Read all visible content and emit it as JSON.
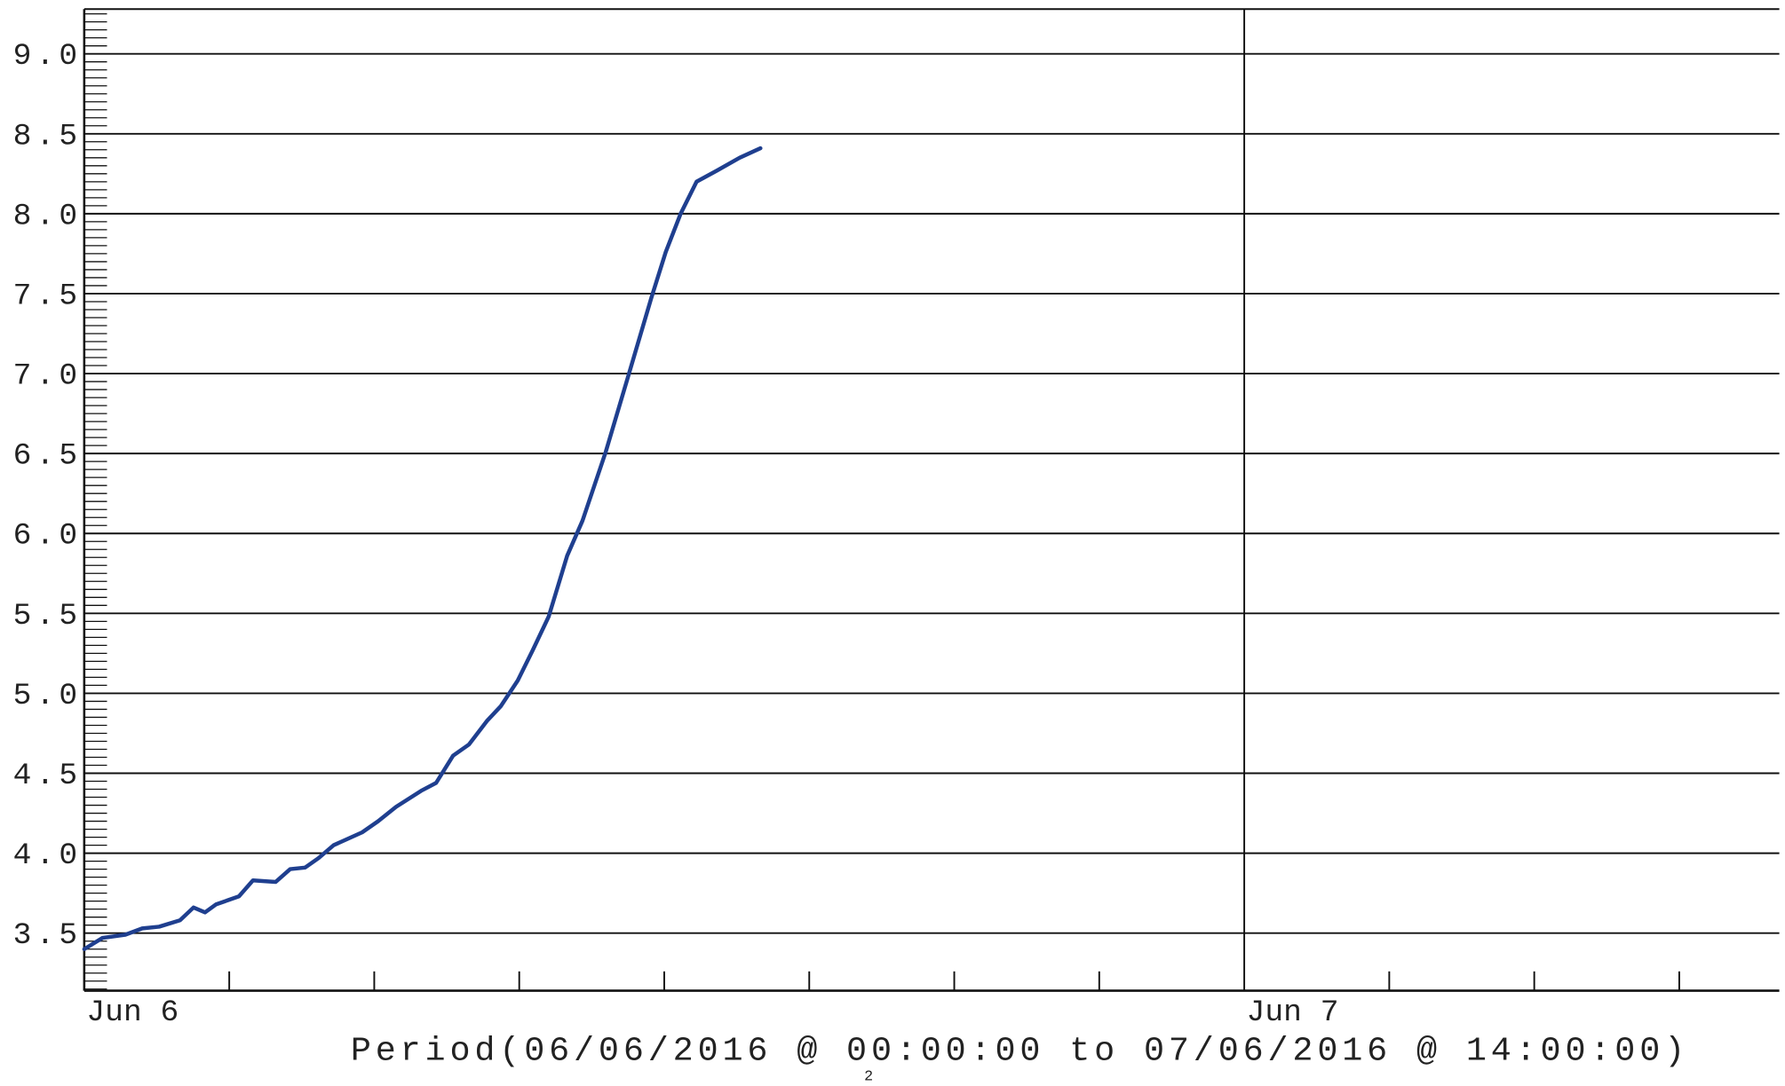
{
  "chart_data": {
    "type": "line",
    "footer": "Period(06/06/2016 @ 00:00:00 to 07/06/2016 @ 14:00:00)",
    "page_number": "2",
    "x": [
      0,
      0.38,
      0.85,
      1.2,
      1.55,
      1.98,
      2.26,
      2.5,
      2.73,
      3.2,
      3.49,
      3.96,
      4.26,
      4.57,
      4.85,
      5.16,
      5.75,
      6.08,
      6.45,
      6.97,
      7.28,
      7.63,
      7.96,
      8.34,
      8.62,
      8.97,
      9.28,
      9.61,
      9.99,
      10.31,
      10.79,
      11.26,
      11.73,
      12.03,
      12.34,
      12.67,
      13.09,
      13.56,
      13.99
    ],
    "series": [
      {
        "color": "#1f3f8f",
        "values": [
          3.4,
          3.47,
          3.49,
          3.53,
          3.54,
          3.58,
          3.66,
          3.63,
          3.68,
          3.73,
          3.83,
          3.82,
          3.9,
          3.91,
          3.97,
          4.05,
          4.13,
          4.2,
          4.29,
          4.39,
          4.44,
          4.61,
          4.68,
          4.83,
          4.92,
          5.08,
          5.27,
          5.48,
          5.86,
          6.08,
          6.51,
          6.99,
          7.47,
          7.76,
          8.0,
          8.2,
          8.27,
          8.35,
          8.41
        ]
      }
    ],
    "xlim": [
      0,
      35.07
    ],
    "xticks": [
      {
        "value": 0,
        "label": "Jun 6"
      },
      {
        "value": 24,
        "label": "Jun 7"
      }
    ],
    "xminorticks": [
      3,
      6,
      9,
      12,
      15,
      18,
      21,
      27,
      30,
      33
    ],
    "ylim": [
      3.14,
      9.28
    ],
    "yticks": [
      {
        "value": 3.5,
        "label": "3.5"
      },
      {
        "value": 4,
        "label": "4.0"
      },
      {
        "value": 4.5,
        "label": "4.5"
      },
      {
        "value": 5,
        "label": "5.0"
      },
      {
        "value": 5.5,
        "label": "5.5"
      },
      {
        "value": 6,
        "label": "6.0"
      },
      {
        "value": 6.5,
        "label": "6.5"
      },
      {
        "value": 7,
        "label": "7.0"
      },
      {
        "value": 7.5,
        "label": "7.5"
      },
      {
        "value": 8,
        "label": "8.0"
      },
      {
        "value": 8.5,
        "label": "8.5"
      },
      {
        "value": 9,
        "label": "9.0"
      }
    ],
    "yminorticks": [
      3.15,
      3.2,
      3.25,
      3.3,
      3.35,
      3.4,
      3.45,
      3.55,
      3.6,
      3.65,
      3.7,
      3.75,
      3.8,
      3.85,
      3.9,
      3.95,
      4.05,
      4.1,
      4.15,
      4.2,
      4.25,
      4.3,
      4.35,
      4.4,
      4.45,
      4.55,
      4.6,
      4.65,
      4.7,
      4.75,
      4.8,
      4.85,
      4.9,
      4.95,
      5.05,
      5.1,
      5.15,
      5.2,
      5.25,
      5.3,
      5.35,
      5.4,
      5.45,
      5.55,
      5.6,
      5.65,
      5.7,
      5.75,
      5.8,
      5.85,
      5.9,
      5.95,
      6.05,
      6.1,
      6.15,
      6.2,
      6.25,
      6.3,
      6.35,
      6.4,
      6.45,
      6.55,
      6.6,
      6.65,
      6.7,
      6.75,
      6.8,
      6.85,
      6.9,
      6.95,
      7.05,
      7.1,
      7.15,
      7.2,
      7.25,
      7.3,
      7.35,
      7.4,
      7.45,
      7.55,
      7.6,
      7.65,
      7.7,
      7.75,
      7.8,
      7.85,
      7.9,
      7.95,
      8.05,
      8.1,
      8.15,
      8.2,
      8.25,
      8.3,
      8.35,
      8.4,
      8.45,
      8.55,
      8.6,
      8.65,
      8.7,
      8.75,
      8.8,
      8.85,
      8.9,
      8.95,
      9.05,
      9.1,
      9.15,
      9.2,
      9.25
    ],
    "grid": true
  }
}
